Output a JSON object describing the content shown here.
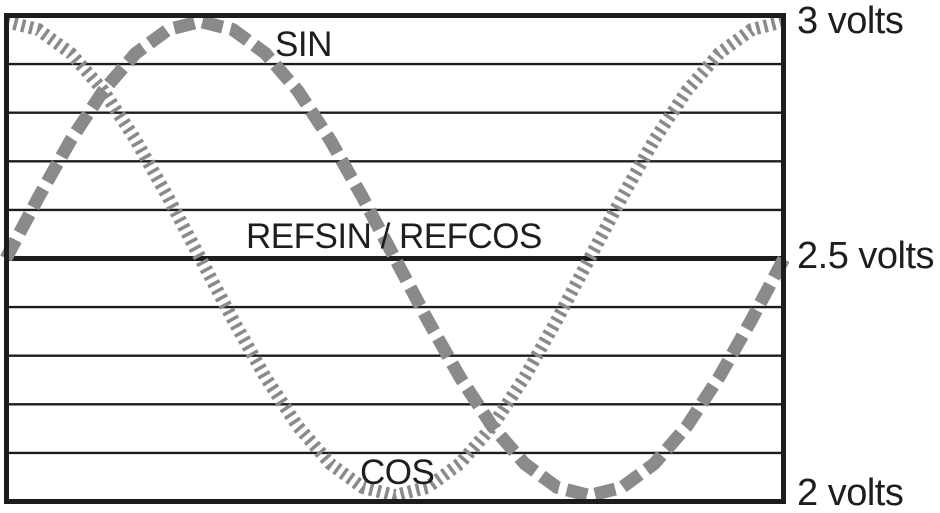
{
  "figure": {
    "description": "Resolver SIN and COS output waveforms over one electrical cycle, centered on a 2.5 volt reference"
  },
  "chart_data": {
    "type": "line",
    "title": "",
    "xlabel": "",
    "ylabel": "volts",
    "ylim": [
      2,
      3
    ],
    "x_unit": "degrees",
    "x": [
      0,
      15,
      30,
      45,
      60,
      75,
      90,
      105,
      120,
      135,
      150,
      165,
      180,
      195,
      210,
      225,
      240,
      255,
      270,
      285,
      300,
      315,
      330,
      345,
      360
    ],
    "series": [
      {
        "name": "COS",
        "values": [
          3.0,
          2.983,
          2.933,
          2.854,
          2.75,
          2.629,
          2.5,
          2.371,
          2.25,
          2.146,
          2.067,
          2.017,
          2.0,
          2.017,
          2.067,
          2.146,
          2.25,
          2.371,
          2.5,
          2.629,
          2.75,
          2.854,
          2.933,
          2.983,
          3.0
        ],
        "style": {
          "color": "#8a8a8a",
          "width": 13,
          "dash": [
            3.5,
            4.5
          ]
        }
      },
      {
        "name": "SIN",
        "values": [
          2.5,
          2.629,
          2.75,
          2.854,
          2.933,
          2.983,
          3.0,
          2.983,
          2.933,
          2.854,
          2.75,
          2.629,
          2.5,
          2.371,
          2.25,
          2.146,
          2.067,
          2.017,
          2.0,
          2.017,
          2.067,
          2.146,
          2.25,
          2.371,
          2.5
        ],
        "style": {
          "color": "#8a8a8a",
          "width": 13,
          "dash": [
            21,
            8
          ]
        }
      }
    ],
    "reference_level": 2.5,
    "y_gridline_step": 0.1,
    "grid": true,
    "legend_position": "inline-annotations",
    "annotations": [
      {
        "text": "SIN",
        "attached_to": "SIN series peak"
      },
      {
        "text": "REFSIN / REFCOS",
        "attached_to": "2.5 volt reference line"
      },
      {
        "text": "COS",
        "attached_to": "COS series trough"
      }
    ],
    "y_tick_labels": [
      "3 volts",
      "2.5 volts",
      "2 volts"
    ],
    "colors": {
      "curve": "#8a8a8a",
      "frame": "#1c1c1c",
      "background": "#ffffff",
      "text": "#1e1e1e"
    }
  }
}
